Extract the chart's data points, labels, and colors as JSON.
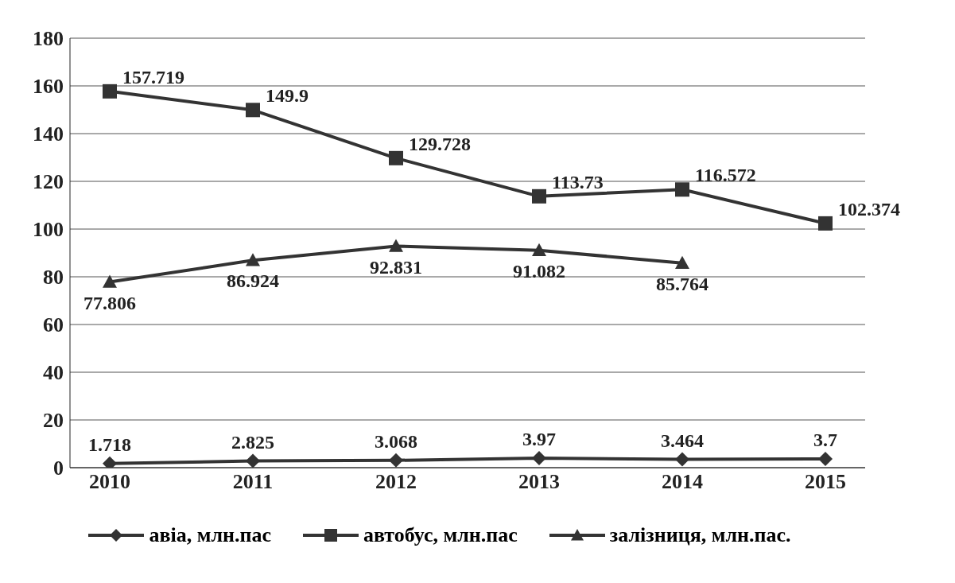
{
  "chart_data": {
    "type": "line",
    "categories": [
      "2010",
      "2011",
      "2012",
      "2013",
      "2014",
      "2015"
    ],
    "series": [
      {
        "name": "авіа, млн.пас",
        "color": "#333333",
        "marker": "diamond",
        "values": [
          1.718,
          2.825,
          3.068,
          3.97,
          3.464,
          3.7
        ]
      },
      {
        "name": "автобус, млн.пас",
        "color": "#333333",
        "marker": "square",
        "values": [
          157.719,
          149.9,
          129.728,
          113.73,
          116.572,
          102.374
        ]
      },
      {
        "name": "залізниця, млн.пас.",
        "color": "#333333",
        "marker": "triangle",
        "values": [
          77.806,
          86.924,
          92.831,
          91.082,
          85.764,
          null
        ]
      }
    ],
    "ylim": [
      0,
      180
    ],
    "yticks": [
      0,
      20,
      40,
      60,
      80,
      100,
      120,
      140,
      160,
      180
    ],
    "grid": "y",
    "legend": "bottom",
    "data_labels": true,
    "line_style": "solid"
  }
}
